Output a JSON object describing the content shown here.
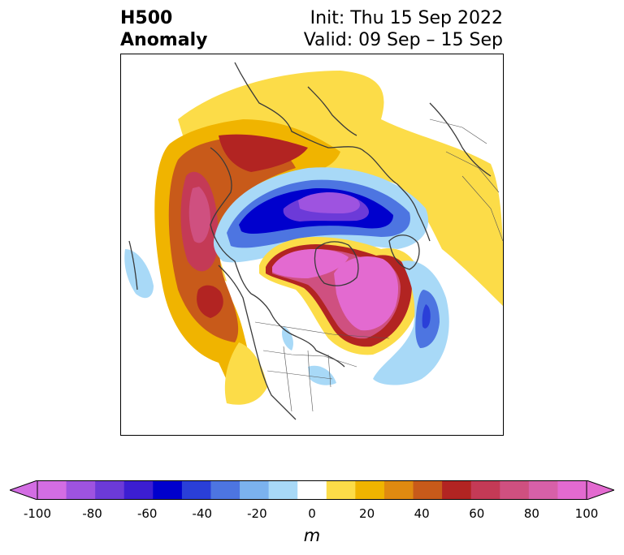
{
  "title": {
    "line1_left": "H500",
    "line2_left": "Anomaly",
    "line1_right": "Init: Thu 15 Sep 2022",
    "line2_right": "Valid: 09 Sep – 15 Sep"
  },
  "map": {
    "projection": "north-polar-stereographic",
    "features": [
      "coastlines",
      "country-borders",
      "state-borders"
    ],
    "anomaly_regions": [
      {
        "name": "negative-anomaly-arctic",
        "sign": "negative",
        "peak_m": -90
      },
      {
        "name": "positive-anomaly-north-atlantic",
        "sign": "positive",
        "peak_m": 100
      },
      {
        "name": "positive-anomaly-canadian-arctic",
        "sign": "positive",
        "peak_m": 100
      },
      {
        "name": "positive-anomaly-north-pacific",
        "sign": "positive",
        "peak_m": 90
      },
      {
        "name": "positive-anomaly-eurasia",
        "sign": "positive",
        "peak_m": 50
      },
      {
        "name": "negative-anomaly-western-north-america",
        "sign": "negative",
        "peak_m": -50
      }
    ]
  },
  "colorbar": {
    "units": "m",
    "levels": [
      -100,
      -90,
      -80,
      -70,
      -60,
      -50,
      -40,
      -30,
      -20,
      -10,
      10,
      20,
      30,
      40,
      50,
      60,
      70,
      80,
      90,
      100
    ],
    "ticks": [
      "-100",
      "-80",
      "-60",
      "-40",
      "-20",
      "0",
      "20",
      "40",
      "60",
      "80",
      "100"
    ],
    "colors": [
      "#d36de3",
      "#9e53e0",
      "#6c3ad8",
      "#3c1ed2",
      "#0000cd",
      "#2a3fd8",
      "#4d75e1",
      "#7bb2ee",
      "#a8d9f7",
      "#ffffff",
      "#fcdc48",
      "#f0b400",
      "#e08a10",
      "#c85a1a",
      "#b22422",
      "#c43a56",
      "#cf5080",
      "#d760a8",
      "#e36ad0"
    ],
    "extend_low_color": "#d36de3",
    "extend_high_color": "#e36ad0"
  }
}
